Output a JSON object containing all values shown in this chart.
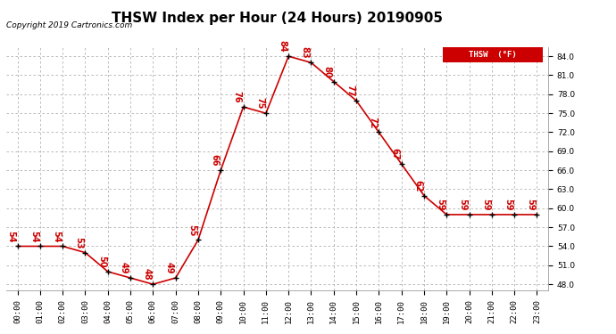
{
  "title": "THSW Index per Hour (24 Hours) 20190905",
  "copyright": "Copyright 2019 Cartronics.com",
  "legend_label": "THSW  (°F)",
  "hours": [
    0,
    1,
    2,
    3,
    4,
    5,
    6,
    7,
    8,
    9,
    10,
    11,
    12,
    13,
    14,
    15,
    16,
    17,
    18,
    19,
    20,
    21,
    22,
    23
  ],
  "values": [
    54,
    54,
    54,
    53,
    50,
    49,
    48,
    49,
    55,
    66,
    76,
    75,
    84,
    83,
    80,
    77,
    72,
    67,
    62,
    59,
    59,
    59,
    59,
    59
  ],
  "ylim": [
    47.0,
    85.5
  ],
  "yticks": [
    48.0,
    51.0,
    54.0,
    57.0,
    60.0,
    63.0,
    66.0,
    69.0,
    72.0,
    75.0,
    78.0,
    81.0,
    84.0
  ],
  "line_color": "#cc0000",
  "marker_color": "#000000",
  "label_color": "#cc0000",
  "grid_color": "#b0b0b0",
  "background_color": "#ffffff",
  "title_fontsize": 11,
  "tick_fontsize": 6.5,
  "label_fontsize": 7,
  "copyright_fontsize": 6.5
}
